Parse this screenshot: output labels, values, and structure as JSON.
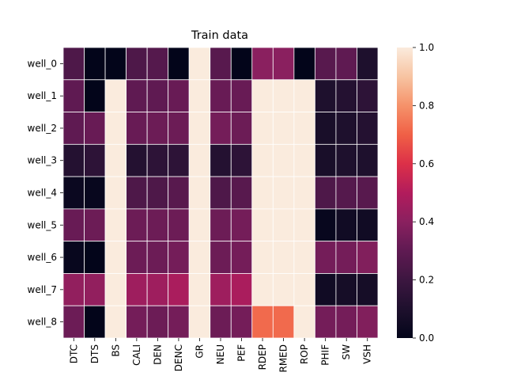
{
  "chart_data": {
    "type": "heatmap",
    "title": "Train data",
    "xlabel": "",
    "ylabel": "",
    "columns": [
      "DTC",
      "DTS",
      "BS",
      "CALI",
      "DEN",
      "DENC",
      "GR",
      "NEU",
      "PEF",
      "RDEP",
      "RMED",
      "ROP",
      "PHIF",
      "SW",
      "VSH"
    ],
    "rows": [
      "well_0",
      "well_1",
      "well_2",
      "well_3",
      "well_4",
      "well_5",
      "well_6",
      "well_7",
      "well_8"
    ],
    "values": [
      [
        0.25,
        0.0,
        0.0,
        0.25,
        0.27,
        0.0,
        1.0,
        0.28,
        0.0,
        0.4,
        0.4,
        0.0,
        0.28,
        0.3,
        0.1
      ],
      [
        0.3,
        0.0,
        1.0,
        0.3,
        0.3,
        0.32,
        1.0,
        0.32,
        0.32,
        1.0,
        1.0,
        1.0,
        0.1,
        0.12,
        0.15
      ],
      [
        0.3,
        0.32,
        1.0,
        0.32,
        0.33,
        0.33,
        1.0,
        0.35,
        0.33,
        1.0,
        1.0,
        1.0,
        0.08,
        0.1,
        0.12
      ],
      [
        0.12,
        0.15,
        1.0,
        0.12,
        0.15,
        0.15,
        1.0,
        0.12,
        0.15,
        1.0,
        1.0,
        1.0,
        0.08,
        0.1,
        0.1
      ],
      [
        0.03,
        0.02,
        1.0,
        0.25,
        0.25,
        0.28,
        1.0,
        0.25,
        0.28,
        1.0,
        1.0,
        1.0,
        0.25,
        0.27,
        0.28
      ],
      [
        0.32,
        0.33,
        1.0,
        0.33,
        0.33,
        0.33,
        1.0,
        0.33,
        0.35,
        1.0,
        1.0,
        1.0,
        0.02,
        0.05,
        0.05
      ],
      [
        0.02,
        0.0,
        1.0,
        0.33,
        0.33,
        0.35,
        1.0,
        0.33,
        0.35,
        1.0,
        1.0,
        1.0,
        0.35,
        0.35,
        0.38
      ],
      [
        0.42,
        0.42,
        1.0,
        0.45,
        0.45,
        0.48,
        1.0,
        0.45,
        0.48,
        1.0,
        1.0,
        1.0,
        0.05,
        0.07,
        0.07
      ],
      [
        0.33,
        0.0,
        1.0,
        0.35,
        0.33,
        0.35,
        1.0,
        0.33,
        0.35,
        0.72,
        0.72,
        1.0,
        0.35,
        0.35,
        0.38
      ]
    ],
    "colorbar": {
      "range": [
        0.0,
        1.0
      ],
      "ticks": [
        "0.0",
        "0.2",
        "0.4",
        "0.6",
        "0.8",
        "1.0"
      ]
    },
    "colormap": "rocket",
    "grid": true
  }
}
